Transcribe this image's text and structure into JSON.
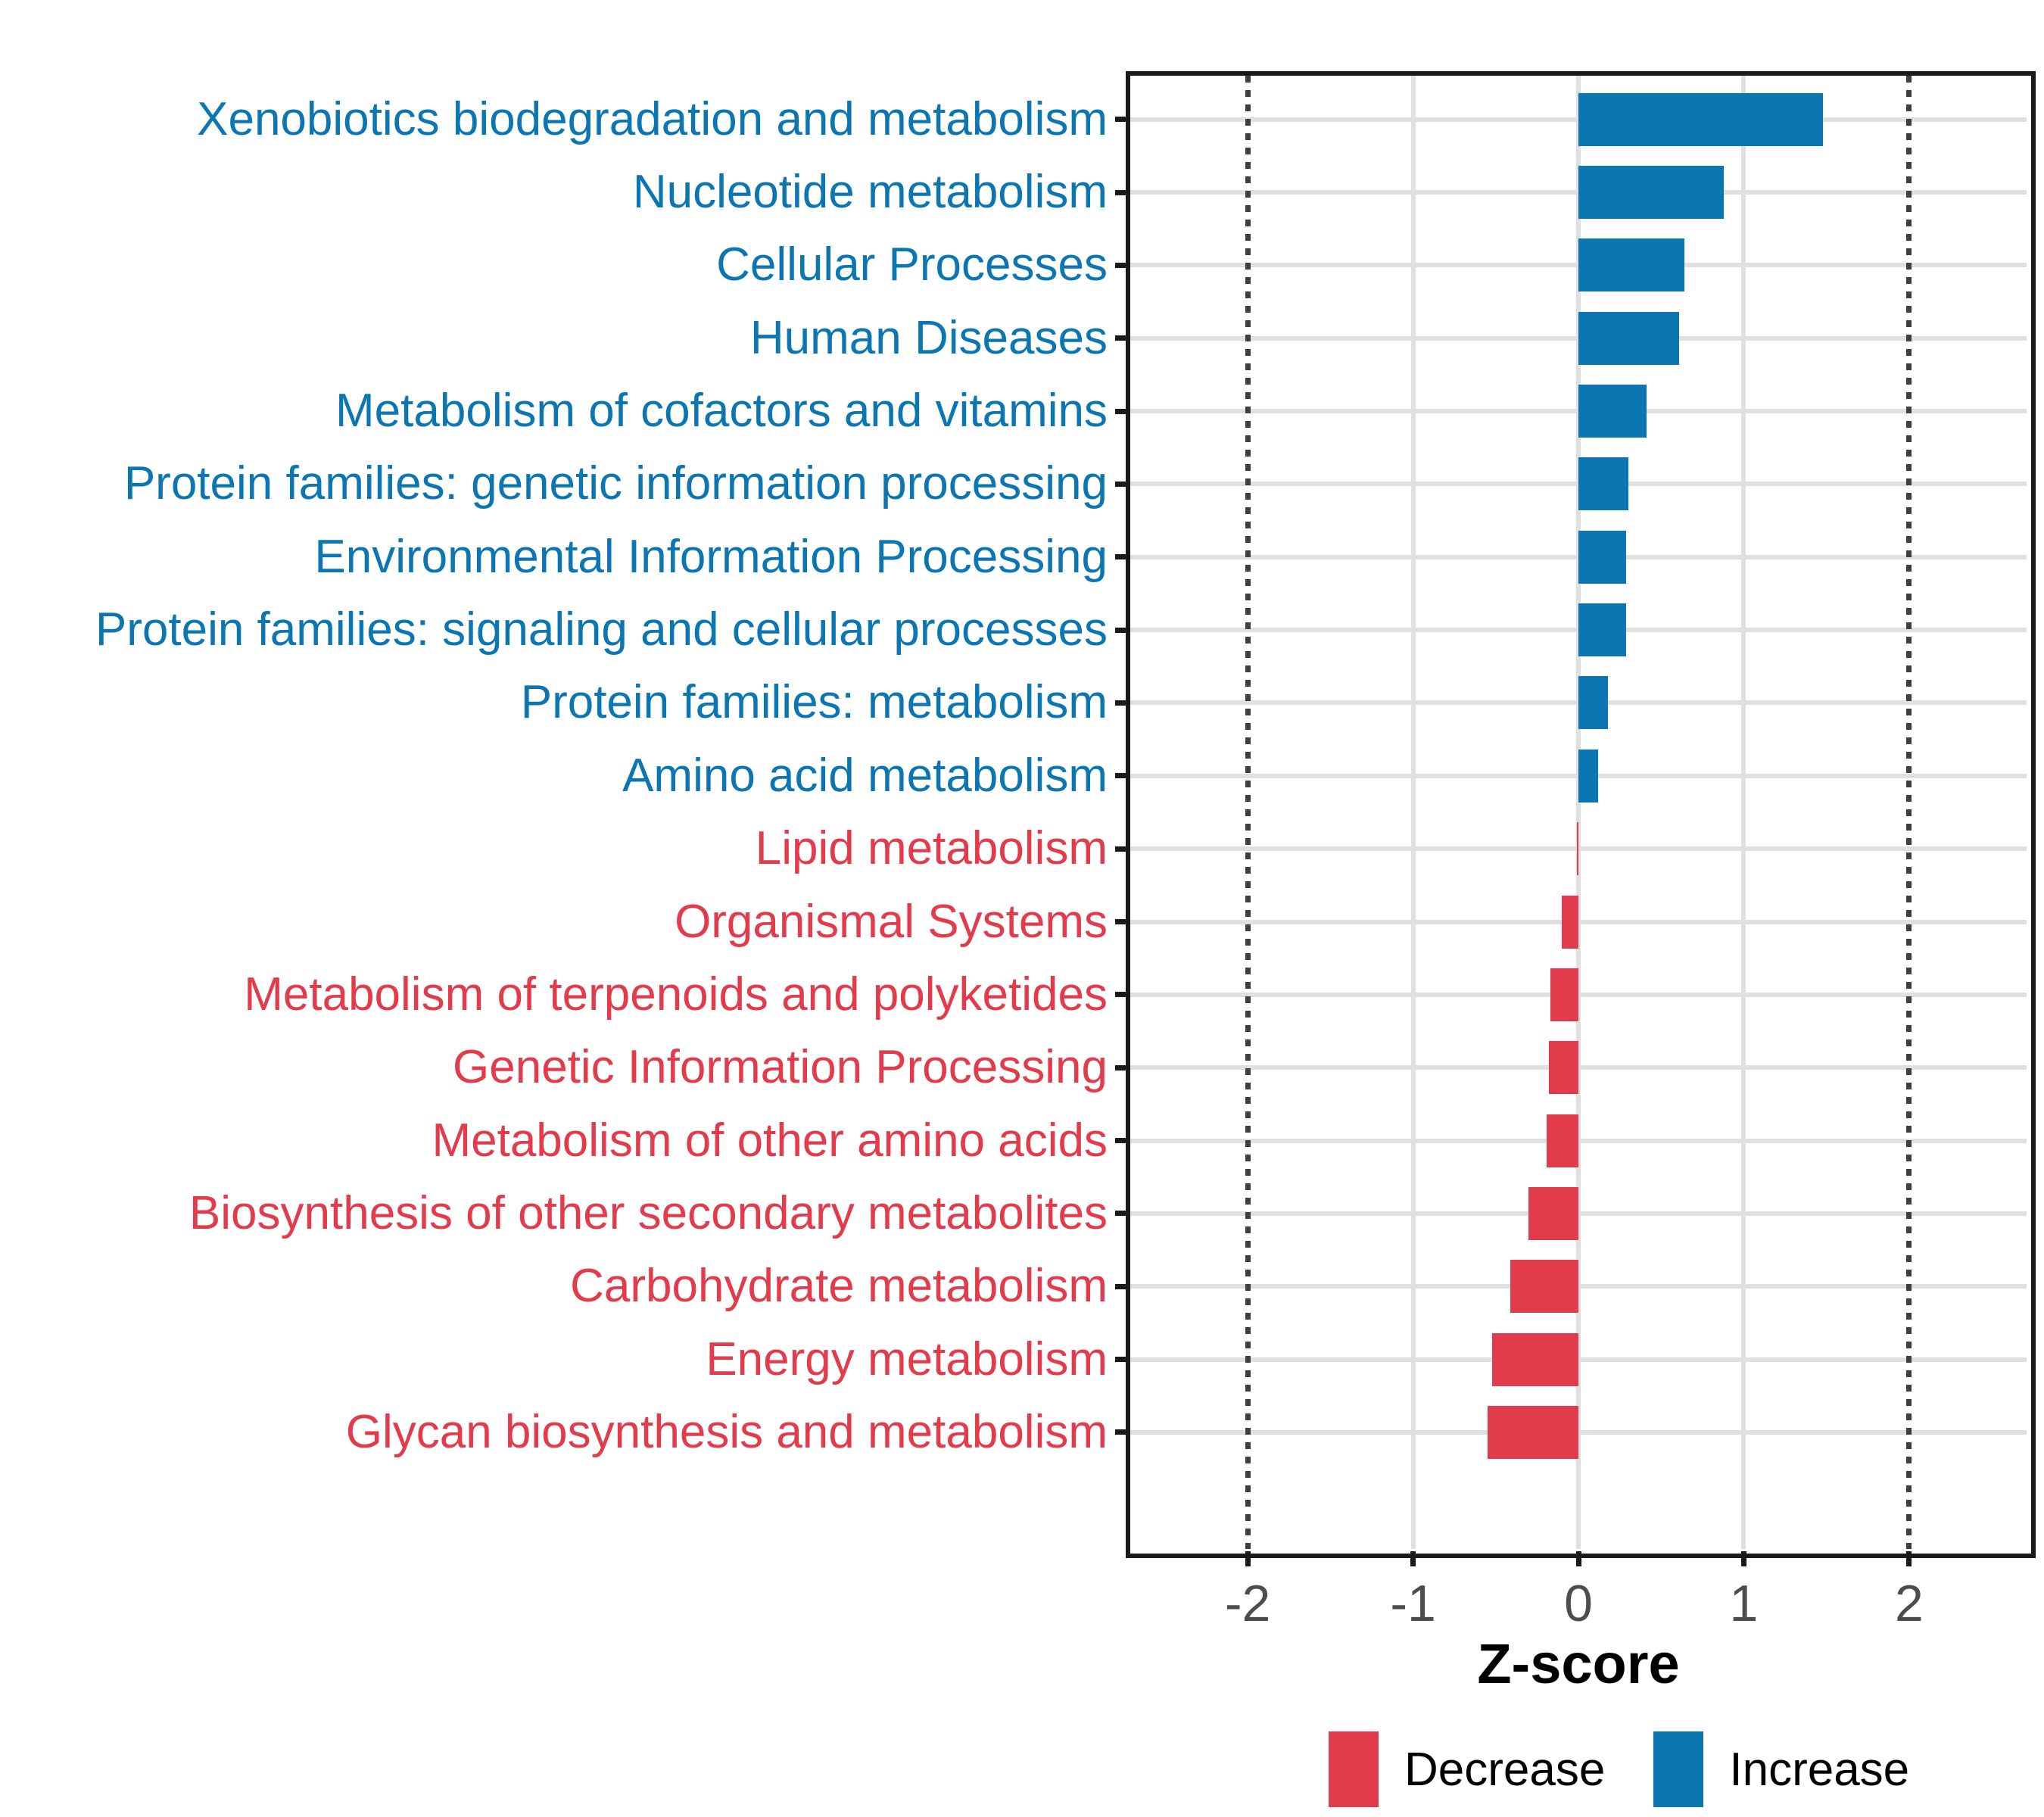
{
  "chart_data": {
    "type": "bar",
    "orientation": "horizontal",
    "xlabel": "Z-score",
    "xlim": [
      -2.71,
      2.71
    ],
    "x_ticks": [
      -2,
      -1,
      0,
      1,
      2
    ],
    "x_gridlines_solid": [
      -1,
      0,
      1
    ],
    "reference_lines_dotted": [
      -2,
      2
    ],
    "grid": "on",
    "legend_position": "bottom-right",
    "categories": [
      "Xenobiotics biodegradation and metabolism",
      "Nucleotide metabolism",
      "Cellular Processes",
      "Human Diseases",
      "Metabolism of cofactors and vitamins",
      "Protein families: genetic information processing",
      "Environmental Information Processing",
      "Protein families: signaling and cellular processes",
      "Protein families: metabolism",
      "Amino acid metabolism",
      "Lipid metabolism",
      "Organismal Systems",
      "Metabolism of terpenoids and polyketides",
      "Genetic Information Processing",
      "Metabolism of other amino acids",
      "Biosynthesis of other secondary metabolites",
      "Carbohydrate metabolism",
      "Energy metabolism",
      "Glycan biosynthesis and metabolism"
    ],
    "values": [
      1.48,
      0.88,
      0.64,
      0.61,
      0.41,
      0.3,
      0.29,
      0.29,
      0.18,
      0.12,
      -0.01,
      -0.1,
      -0.17,
      -0.18,
      -0.19,
      -0.3,
      -0.41,
      -0.52,
      -0.55
    ],
    "groups": [
      "Increase",
      "Increase",
      "Increase",
      "Increase",
      "Increase",
      "Increase",
      "Increase",
      "Increase",
      "Increase",
      "Increase",
      "Decrease",
      "Decrease",
      "Decrease",
      "Decrease",
      "Decrease",
      "Decrease",
      "Decrease",
      "Decrease",
      "Decrease"
    ],
    "colors": {
      "increase": "#0B76B1",
      "decrease": "#E23B4C",
      "gridline": "#E0E0E0",
      "reference_line": "#3F3F3F",
      "panel_border": "#1A1A1A",
      "x_tick_label": "#4D4D4D"
    },
    "legend": [
      {
        "label": "Decrease",
        "color": "#E23B4C"
      },
      {
        "label": "Increase",
        "color": "#0B76B1"
      }
    ]
  }
}
